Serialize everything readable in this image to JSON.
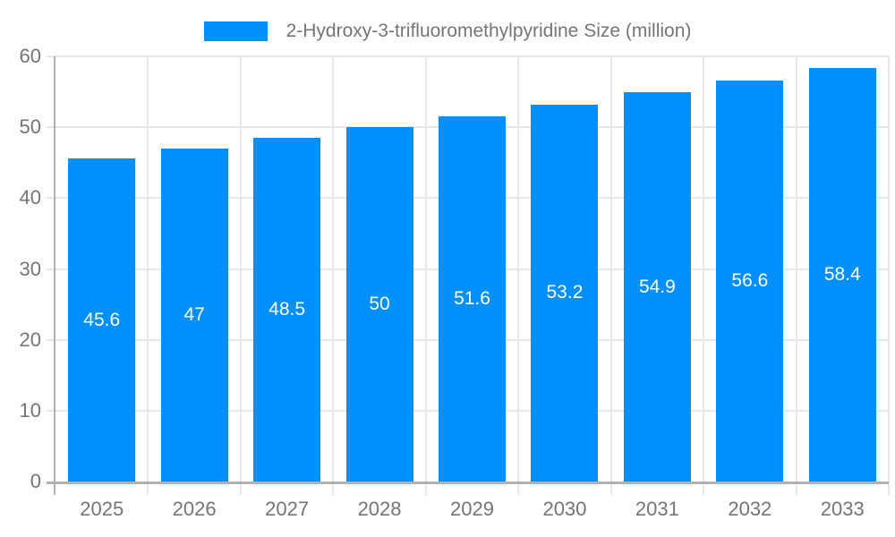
{
  "chart_data": {
    "type": "bar",
    "title": "2-Hydroxy-3-trifluoromethylpyridine Size (million)",
    "categories": [
      "2025",
      "2026",
      "2027",
      "2028",
      "2029",
      "2030",
      "2031",
      "2032",
      "2033"
    ],
    "values": [
      45.6,
      47,
      48.5,
      50,
      51.6,
      53.2,
      54.9,
      56.6,
      58.4
    ],
    "value_labels": [
      "45.6",
      "47",
      "48.5",
      "50",
      "51.6",
      "53.2",
      "54.9",
      "56.6",
      "58.4"
    ],
    "ylim": [
      0,
      60
    ],
    "yticks": [
      0,
      10,
      20,
      30,
      40,
      50,
      60
    ],
    "grid": true,
    "legend_position": "top",
    "colors": {
      "bar": "#0190fb",
      "bar_value_label": "#ffffff",
      "axis_label": "#757575",
      "grid_line": "#e7e7e7",
      "axis_line": "#b1b1b1",
      "background": "#ffffff"
    }
  }
}
